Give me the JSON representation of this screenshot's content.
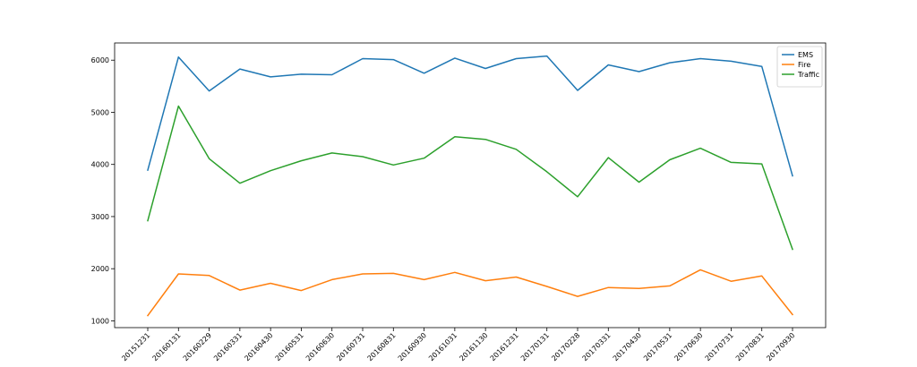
{
  "chart_data": {
    "type": "line",
    "title": "",
    "xlabel": "",
    "ylabel": "",
    "categories": [
      "20151231",
      "20160131",
      "20160229",
      "20160331",
      "20160430",
      "20160531",
      "20160630",
      "20160731",
      "20160831",
      "20160930",
      "20161031",
      "20161130",
      "20161231",
      "20170131",
      "20170228",
      "20170331",
      "20170430",
      "20170531",
      "20170630",
      "20170731",
      "20170831",
      "20170930"
    ],
    "ylim": [
      870,
      6330
    ],
    "yticks": [
      1000,
      2000,
      3000,
      4000,
      5000,
      6000
    ],
    "grid": false,
    "legend_position": "top-right",
    "series": [
      {
        "name": "EMS",
        "color": "#1f77b4",
        "values": [
          3890,
          6060,
          5410,
          5830,
          5680,
          5730,
          5720,
          6030,
          6010,
          5750,
          6040,
          5840,
          6030,
          6080,
          5420,
          5910,
          5780,
          5950,
          6030,
          5980,
          5880,
          3780
        ]
      },
      {
        "name": "Fire",
        "color": "#ff7f0e",
        "values": [
          1100,
          1900,
          1870,
          1590,
          1720,
          1580,
          1790,
          1900,
          1910,
          1790,
          1930,
          1770,
          1840,
          1660,
          1470,
          1640,
          1620,
          1670,
          1980,
          1760,
          1860,
          1120
        ]
      },
      {
        "name": "Traffic",
        "color": "#2ca02c",
        "values": [
          2920,
          5120,
          4110,
          3640,
          3880,
          4070,
          4220,
          4150,
          3990,
          4120,
          4530,
          4480,
          4290,
          3860,
          3380,
          4130,
          3660,
          4090,
          4310,
          4040,
          4010,
          2370
        ]
      }
    ]
  }
}
